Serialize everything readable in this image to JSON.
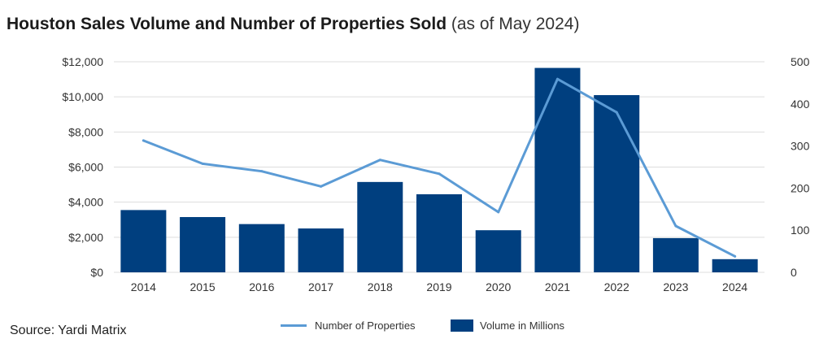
{
  "title": "Houston Sales Volume and Number of Properties Sold",
  "subtitle": "(as of May 2024)",
  "source": "Source: Yardi Matrix",
  "colors": {
    "bar": "#003f7f",
    "line": "#5b9bd5",
    "grid": "#dddddd"
  },
  "chart_data": {
    "type": "bar",
    "categories": [
      "2014",
      "2015",
      "2016",
      "2017",
      "2018",
      "2019",
      "2020",
      "2021",
      "2022",
      "2023",
      "2024"
    ],
    "series": [
      {
        "name": "Volume in Millions",
        "type": "bar",
        "axis": "left",
        "values": [
          3550,
          3150,
          2750,
          2500,
          5150,
          4450,
          2400,
          11650,
          10100,
          1950,
          750
        ]
      },
      {
        "name": "Number of Properties",
        "type": "line",
        "axis": "right",
        "values": [
          313,
          258,
          240,
          204,
          267,
          234,
          143,
          459,
          380,
          110,
          38
        ]
      }
    ],
    "y_left": {
      "ylim": [
        0,
        12000
      ],
      "ticks": [
        0,
        2000,
        4000,
        6000,
        8000,
        10000,
        12000
      ],
      "tick_labels": [
        "$0",
        "$2,000",
        "$4,000",
        "$6,000",
        "$8,000",
        "$10,000",
        "$12,000"
      ]
    },
    "y_right": {
      "ylim": [
        0,
        500
      ],
      "ticks": [
        0,
        100,
        200,
        300,
        400,
        500
      ],
      "tick_labels": [
        "0",
        "100",
        "200",
        "300",
        "400",
        "500"
      ]
    },
    "grid": true,
    "legend": "bottom-center"
  }
}
